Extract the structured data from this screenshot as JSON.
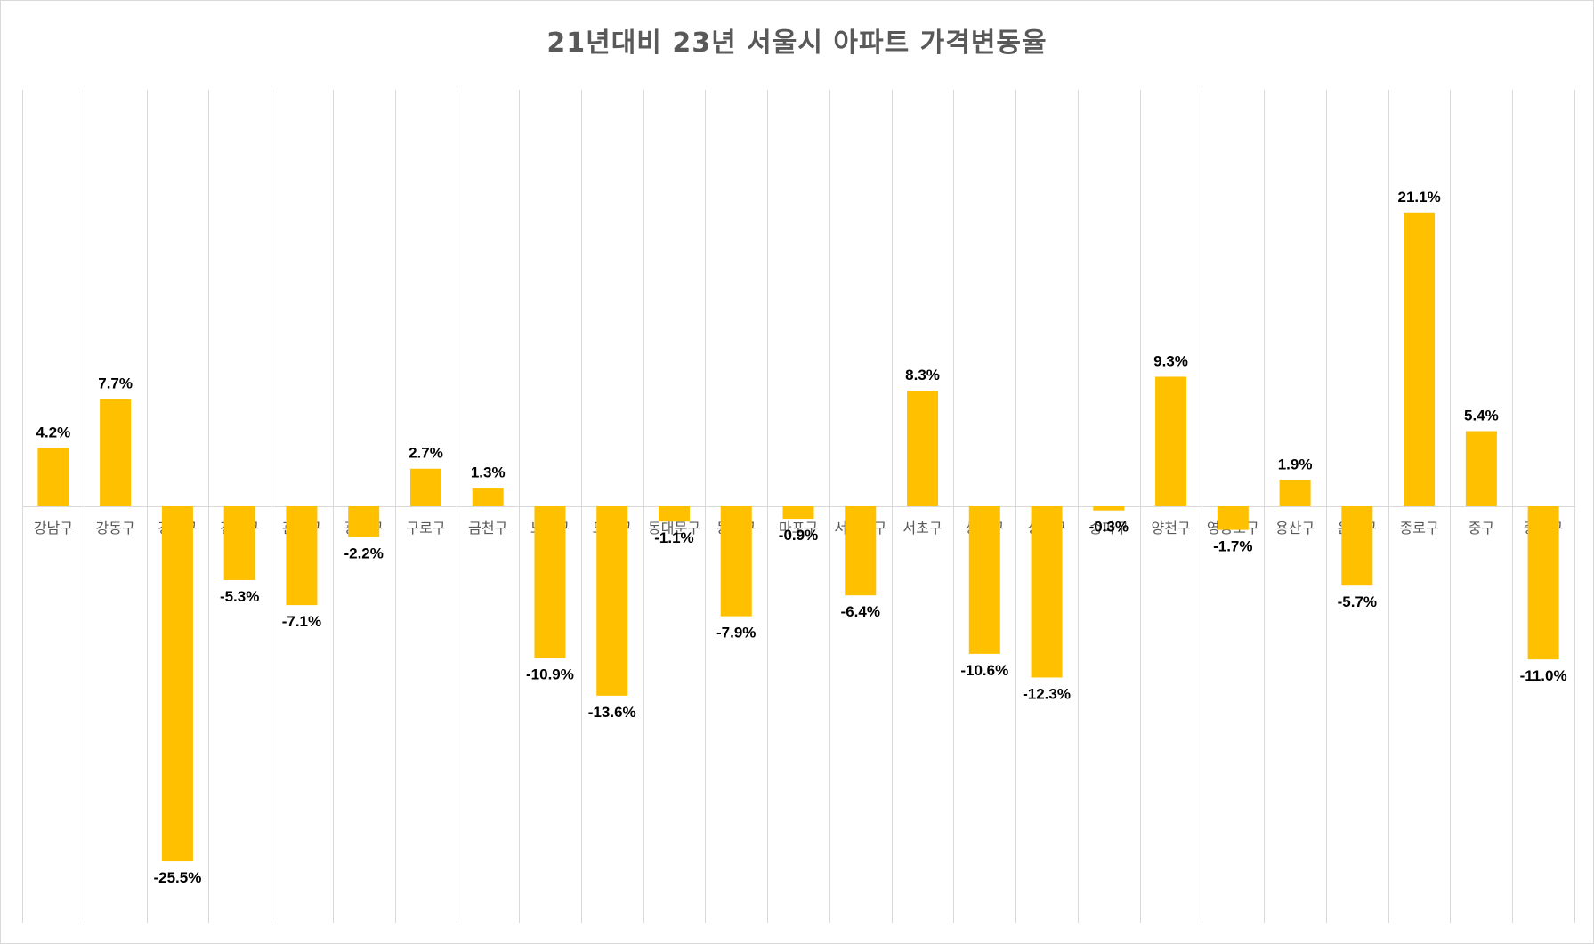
{
  "chart_data": {
    "type": "bar",
    "title": "21년대비 23년 서울시 아파트 가격변동율",
    "categories": [
      "강남구",
      "강동구",
      "강북구",
      "강서구",
      "관악구",
      "광진구",
      "구로구",
      "금천구",
      "노원구",
      "도봉구",
      "동대문구",
      "동작구",
      "마포구",
      "서대문구",
      "서초구",
      "성동구",
      "성북구",
      "송파구",
      "양천구",
      "영등포구",
      "용산구",
      "은평구",
      "종로구",
      "중구",
      "중랑구"
    ],
    "values": [
      4.2,
      7.7,
      -25.5,
      -5.3,
      -7.1,
      -2.2,
      2.7,
      1.3,
      -10.9,
      -13.6,
      -1.1,
      -7.9,
      -0.9,
      -6.4,
      8.3,
      -10.6,
      -12.3,
      -0.3,
      9.3,
      -1.7,
      1.9,
      -5.7,
      21.1,
      5.4,
      -11.0
    ],
    "data_labels": [
      "4.2%",
      "7.7%",
      "-25.5%",
      "-5.3%",
      "-7.1%",
      "-2.2%",
      "2.7%",
      "1.3%",
      "-10.9%",
      "-13.6%",
      "-1.1%",
      "-7.9%",
      "-0.9%",
      "-6.4%",
      "8.3%",
      "-10.6%",
      "-12.3%",
      "-0.3%",
      "9.3%",
      "-1.7%",
      "1.9%",
      "-5.7%",
      "21.1%",
      "5.4%",
      "-11.0%"
    ],
    "unit": "%",
    "bar_color": "#FFC000",
    "grid": "vertical",
    "legend": "none",
    "ylim": [
      -30,
      30
    ]
  }
}
